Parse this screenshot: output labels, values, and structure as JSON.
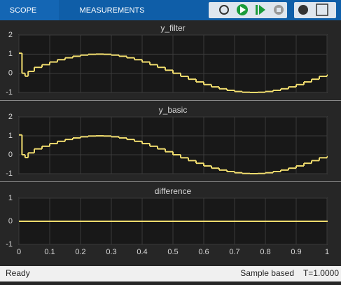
{
  "toolbar": {
    "tabs": [
      "SCOPE",
      "MEASUREMENTS"
    ]
  },
  "status": {
    "left": "Ready",
    "mode": "Sample based",
    "time": "T=1.0000"
  },
  "chart_data": [
    {
      "type": "line",
      "title": "y_filter",
      "steps": true,
      "grid": true,
      "color": "#f0dc6e",
      "x": [
        0,
        0.01,
        0.02,
        0.03,
        0.05,
        0.075,
        0.1,
        0.125,
        0.15,
        0.175,
        0.2,
        0.225,
        0.25,
        0.275,
        0.3,
        0.325,
        0.35,
        0.375,
        0.4,
        0.425,
        0.45,
        0.475,
        0.5,
        0.525,
        0.55,
        0.575,
        0.6,
        0.625,
        0.65,
        0.675,
        0.7,
        0.725,
        0.75,
        0.775,
        0.8,
        0.825,
        0.85,
        0.875,
        0.9,
        0.925,
        0.95,
        0.975,
        1
      ],
      "values": [
        1.05,
        0.0,
        -0.15,
        0.1,
        0.31,
        0.45,
        0.59,
        0.71,
        0.81,
        0.89,
        0.95,
        0.99,
        1,
        0.99,
        0.95,
        0.89,
        0.81,
        0.71,
        0.59,
        0.45,
        0.31,
        0.16,
        0,
        -0.16,
        -0.31,
        -0.45,
        -0.59,
        -0.71,
        -0.81,
        -0.89,
        -0.95,
        -0.99,
        -1,
        -0.99,
        -0.95,
        -0.89,
        -0.81,
        -0.71,
        -0.59,
        -0.45,
        -0.31,
        -0.16,
        -0.1
      ],
      "xlim": [
        0,
        1
      ],
      "xticks": [
        0,
        0.1,
        0.2,
        0.3,
        0.4,
        0.5,
        0.6,
        0.7,
        0.8,
        0.9,
        1
      ],
      "ylim": [
        -1,
        2
      ],
      "yticks": [
        -1,
        0,
        1,
        2
      ]
    },
    {
      "type": "line",
      "title": "y_basic",
      "steps": true,
      "grid": true,
      "color": "#f0dc6e",
      "x": [
        0,
        0.01,
        0.02,
        0.03,
        0.05,
        0.075,
        0.1,
        0.125,
        0.15,
        0.175,
        0.2,
        0.225,
        0.25,
        0.275,
        0.3,
        0.325,
        0.35,
        0.375,
        0.4,
        0.425,
        0.45,
        0.475,
        0.5,
        0.525,
        0.55,
        0.575,
        0.6,
        0.625,
        0.65,
        0.675,
        0.7,
        0.725,
        0.75,
        0.775,
        0.8,
        0.825,
        0.85,
        0.875,
        0.9,
        0.925,
        0.95,
        0.975,
        1
      ],
      "values": [
        1.05,
        0.0,
        -0.15,
        0.1,
        0.31,
        0.45,
        0.59,
        0.71,
        0.81,
        0.89,
        0.95,
        0.99,
        1,
        0.99,
        0.95,
        0.89,
        0.81,
        0.71,
        0.59,
        0.45,
        0.31,
        0.16,
        0,
        -0.16,
        -0.31,
        -0.45,
        -0.59,
        -0.71,
        -0.81,
        -0.89,
        -0.95,
        -0.99,
        -1,
        -0.99,
        -0.95,
        -0.89,
        -0.81,
        -0.71,
        -0.59,
        -0.45,
        -0.31,
        -0.16,
        -0.1
      ],
      "xlim": [
        0,
        1
      ],
      "xticks": [
        0,
        0.1,
        0.2,
        0.3,
        0.4,
        0.5,
        0.6,
        0.7,
        0.8,
        0.9,
        1
      ],
      "ylim": [
        -1,
        2
      ],
      "yticks": [
        -1,
        0,
        1,
        2
      ]
    },
    {
      "type": "line",
      "title": "difference",
      "steps": true,
      "grid": true,
      "color": "#f0dc6e",
      "x": [
        0,
        1
      ],
      "values": [
        0,
        0
      ],
      "xlim": [
        0,
        1
      ],
      "xticks": [
        0,
        0.1,
        0.2,
        0.3,
        0.4,
        0.5,
        0.6,
        0.7,
        0.8,
        0.9,
        1
      ],
      "ylim": [
        -1,
        1
      ],
      "yticks": [
        -1,
        0,
        1
      ],
      "xtick_labels": true
    }
  ]
}
